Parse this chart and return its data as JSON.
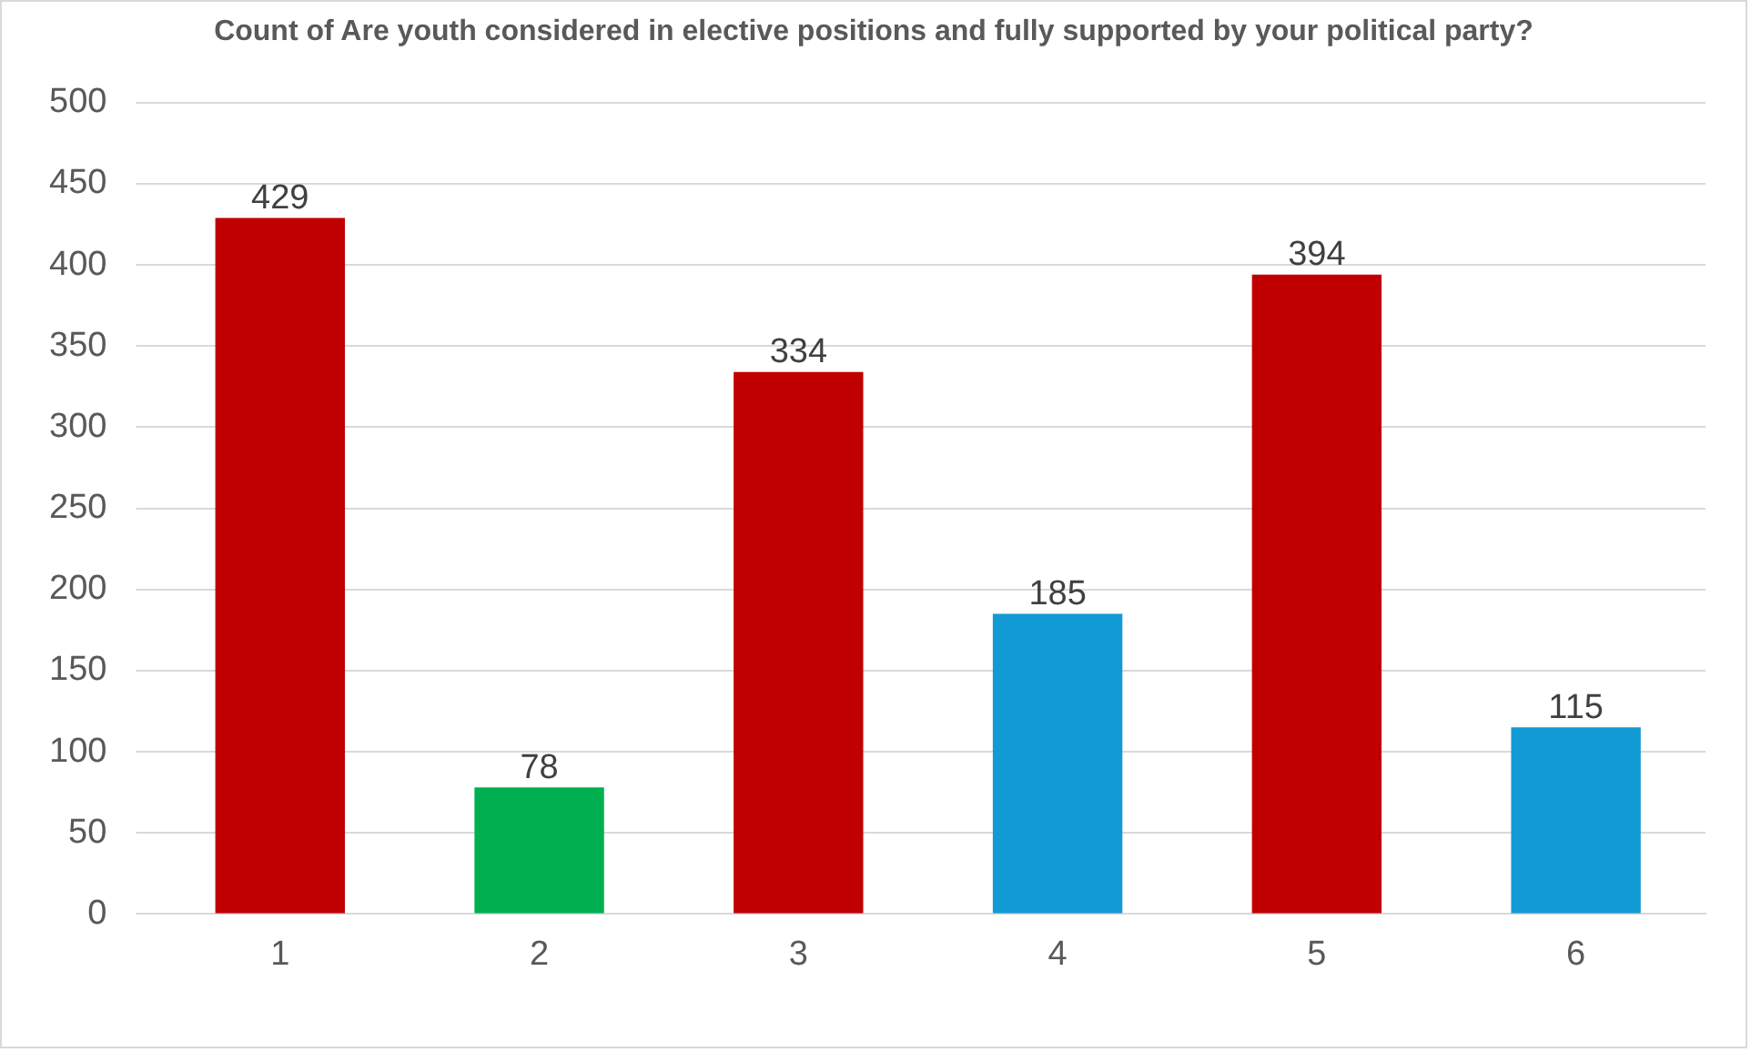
{
  "chart_data": {
    "type": "bar",
    "title": "Count of Are youth considered in elective positions and fully supported by your political party?",
    "categories": [
      "1",
      "2",
      "3",
      "4",
      "5",
      "6"
    ],
    "values": [
      429,
      78,
      334,
      185,
      394,
      115
    ],
    "colors": [
      "#c00000",
      "#00b050",
      "#c00000",
      "#119ad4",
      "#c00000",
      "#119ad4"
    ],
    "ylim": [
      0,
      500
    ],
    "yticks": [
      0,
      50,
      100,
      150,
      200,
      250,
      300,
      350,
      400,
      450,
      500
    ],
    "grid": "y",
    "legend": false,
    "data_labels": true
  }
}
